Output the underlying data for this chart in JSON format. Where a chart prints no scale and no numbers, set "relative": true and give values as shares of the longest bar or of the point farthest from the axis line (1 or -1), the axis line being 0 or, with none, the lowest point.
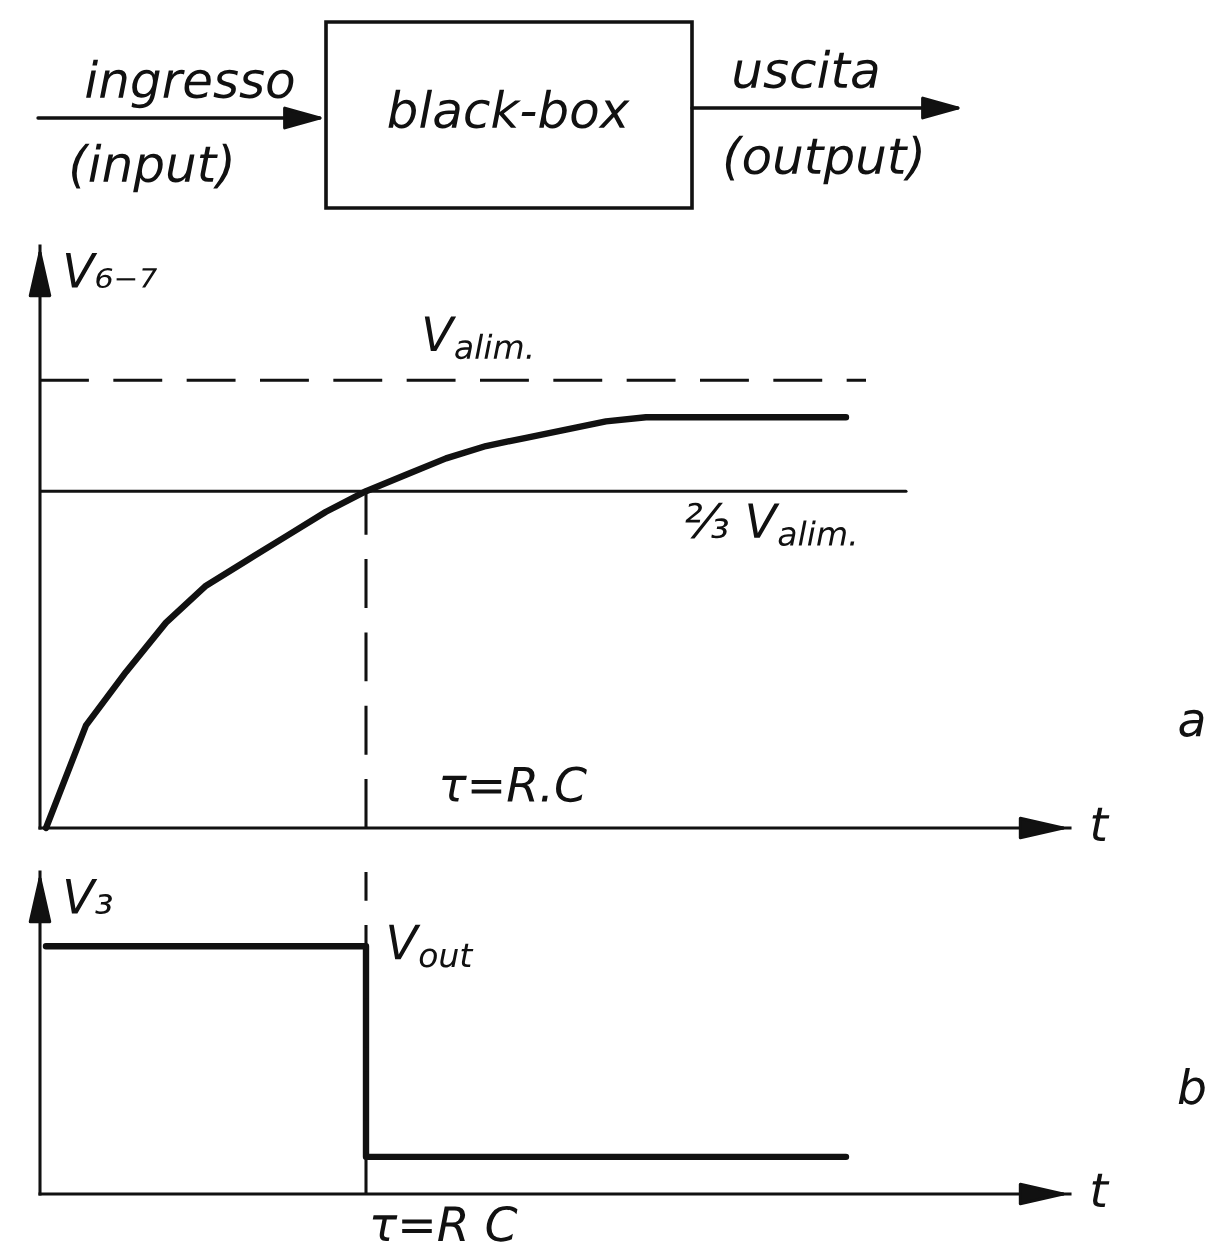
{
  "chart_data": [
    {
      "type": "other",
      "annotations": [
        "ingresso",
        "(input)",
        "black-box",
        "uscita",
        "(output)"
      ]
    },
    {
      "type": "line",
      "relative": true,
      "ylabel": "V₆₋₇",
      "xlabel": "t",
      "categories": [
        null,
        null,
        null,
        null,
        null,
        null,
        null,
        null,
        null,
        null,
        null,
        null,
        null,
        null,
        null,
        null,
        null,
        null,
        null,
        null,
        null
      ],
      "series": [
        {
          "color": "#111111",
          "values": [
            0,
            0.25,
            0.38,
            0.5,
            0.59,
            0.65,
            0.71,
            0.77,
            0.82,
            0.86,
            0.9,
            0.93,
            0.95,
            0.97,
            0.99,
            1,
            1,
            1,
            1,
            1,
            1
          ]
        }
      ],
      "ref_lines": [
        {
          "axis": "y",
          "value": 1.09,
          "label": "V$_{alim.}$",
          "line_style": "dashed",
          "color": "#111111"
        },
        {
          "axis": "y",
          "value": 0.82,
          "label": "⅔ V$_{alim.}$",
          "line_style": "solid",
          "color": "#111111"
        }
      ],
      "annotations": [
        "τ=R.C",
        "a"
      ]
    },
    {
      "type": "step",
      "relative": true,
      "ylabel": "V₃",
      "xlabel": "t",
      "categories": [
        null,
        null,
        null,
        null,
        null,
        null,
        null,
        null,
        null,
        null,
        null,
        null,
        null,
        null,
        null,
        null,
        null,
        null,
        null,
        null,
        null
      ],
      "series": [
        {
          "name": "V$_{out}$",
          "color": "#111111",
          "values": [
            1,
            1,
            1,
            1,
            1,
            1,
            1,
            1,
            0.15,
            0.15,
            0.15,
            0.15,
            0.15,
            0.15,
            0.15,
            0.15,
            0.15,
            0.15,
            0.15,
            0.15,
            0.15
          ]
        }
      ],
      "annotations": [
        "τ=R C",
        "b"
      ]
    }
  ]
}
